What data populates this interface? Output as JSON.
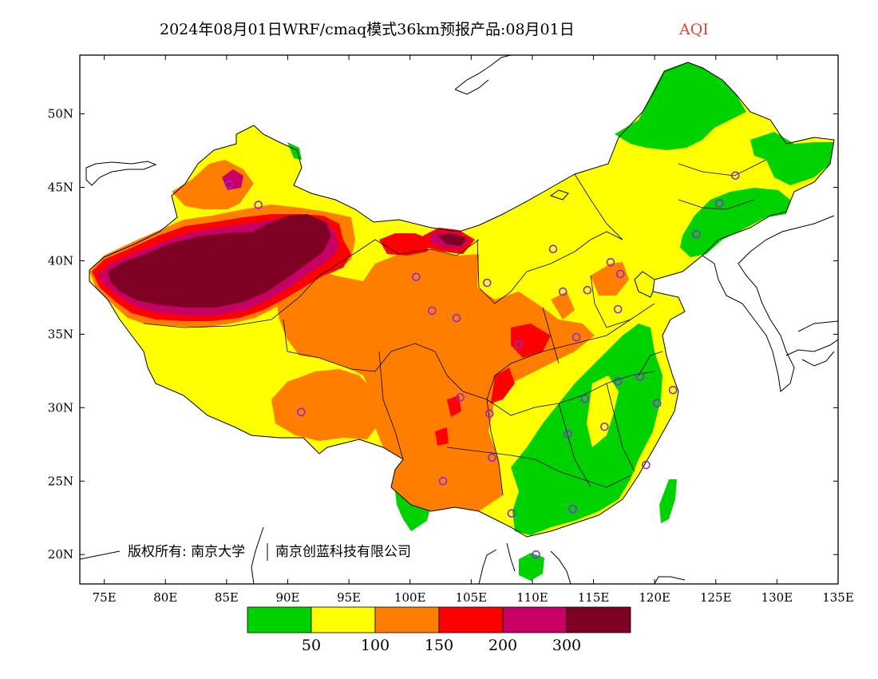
{
  "title": {
    "main": "2024年08月01日WRF/cmaq模式36km预报产品:08月01日",
    "variable": "AQI",
    "variable_color": "#e8413c"
  },
  "map": {
    "x_ticks": [
      "75E",
      "80E",
      "85E",
      "90E",
      "95E",
      "100E",
      "105E",
      "110E",
      "115E",
      "120E",
      "125E",
      "130E",
      "135E"
    ],
    "y_ticks": [
      "50N",
      "45N",
      "40N",
      "35N",
      "30N",
      "25N",
      "20N"
    ],
    "lon_range": [
      73,
      135
    ],
    "lat_range": [
      18,
      54
    ],
    "copyright": "版权所有: 南京大学",
    "copyright2": "南京创蓝科技有限公司",
    "marker_color": "#8a2be2",
    "stations": [
      [
        85.2,
        45.2
      ],
      [
        87.6,
        43.8
      ],
      [
        91.1,
        29.7
      ],
      [
        101.8,
        36.6
      ],
      [
        103.8,
        36.1
      ],
      [
        106.3,
        38.5
      ],
      [
        106.5,
        29.6
      ],
      [
        104.1,
        30.7
      ],
      [
        106.7,
        26.6
      ],
      [
        102.7,
        25.0
      ],
      [
        108.3,
        22.8
      ],
      [
        110.3,
        20.0
      ],
      [
        113.3,
        23.1
      ],
      [
        114.3,
        30.6
      ],
      [
        112.9,
        28.2
      ],
      [
        115.9,
        28.7
      ],
      [
        117.0,
        31.8
      ],
      [
        118.8,
        32.1
      ],
      [
        120.2,
        30.3
      ],
      [
        121.5,
        31.2
      ],
      [
        119.3,
        26.1
      ],
      [
        108.9,
        34.3
      ],
      [
        112.5,
        37.9
      ],
      [
        114.5,
        38.0
      ],
      [
        116.4,
        39.9
      ],
      [
        117.2,
        39.1
      ],
      [
        117.0,
        36.7
      ],
      [
        113.6,
        34.8
      ],
      [
        111.7,
        40.8
      ],
      [
        123.4,
        41.8
      ],
      [
        125.3,
        43.9
      ],
      [
        126.6,
        45.8
      ],
      [
        100.5,
        38.9
      ]
    ]
  },
  "colorbar": {
    "colors": [
      "#00d200",
      "#ffff00",
      "#ff7e00",
      "#ff0000",
      "#c80064",
      "#7e0023"
    ],
    "labels": [
      "50",
      "100",
      "150",
      "200",
      "300"
    ]
  }
}
